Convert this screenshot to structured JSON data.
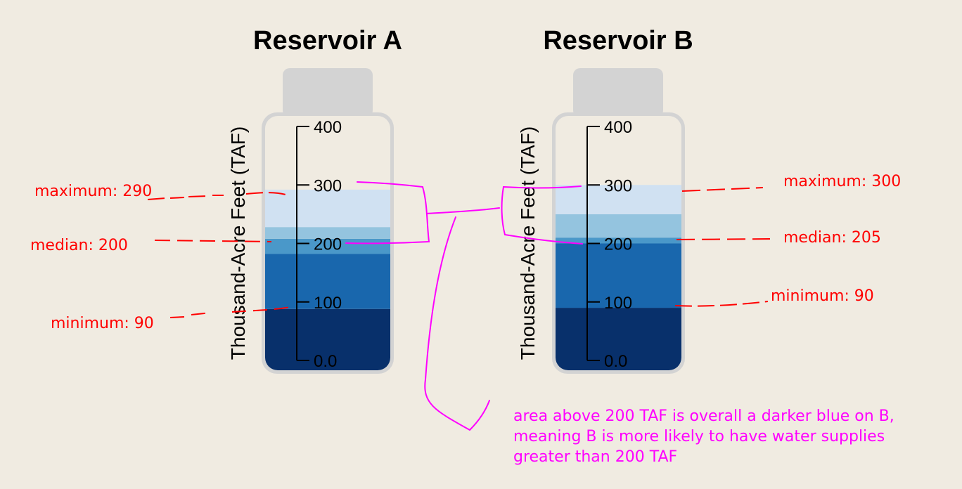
{
  "chart_data": [
    {
      "type": "bar",
      "title": "Reservoir A",
      "ylabel": "Thousand-Acre  Feet (TAF)",
      "ylim": [
        0,
        400
      ],
      "ticks": [
        "0.0",
        "100",
        "200",
        "300",
        "400"
      ],
      "tick_values": [
        0,
        100,
        200,
        300,
        400
      ],
      "bands": [
        {
          "from": 0,
          "to": 88,
          "color": "#08306b"
        },
        {
          "from": 88,
          "to": 182,
          "color": "#1967ad"
        },
        {
          "from": 182,
          "to": 208,
          "color": "#4a98c9"
        },
        {
          "from": 208,
          "to": 228,
          "color": "#94c4df"
        },
        {
          "from": 228,
          "to": 292,
          "color": "#d0e1f2"
        }
      ],
      "annotations": {
        "maximum": "maximum: 290",
        "median": "median: 200",
        "minimum": "minimum: 90"
      },
      "annotation_values": {
        "maximum": 290,
        "median": 200,
        "minimum": 90
      }
    },
    {
      "type": "bar",
      "title": "Reservoir  B",
      "ylabel": "Thousand-Acre  Feet (TAF)",
      "ylim": [
        0,
        400
      ],
      "ticks": [
        "0.0",
        "100",
        "200",
        "300",
        "400"
      ],
      "tick_values": [
        0,
        100,
        200,
        300,
        400
      ],
      "bands": [
        {
          "from": 0,
          "to": 90,
          "color": "#08306b"
        },
        {
          "from": 90,
          "to": 200,
          "color": "#1967ad"
        },
        {
          "from": 200,
          "to": 210,
          "color": "#4a98c9"
        },
        {
          "from": 210,
          "to": 250,
          "color": "#94c4df"
        },
        {
          "from": 250,
          "to": 300,
          "color": "#d0e1f2"
        }
      ],
      "annotations": {
        "maximum": "maximum: 300",
        "median": "median: 205",
        "minimum": "minimum: 90"
      },
      "annotation_values": {
        "maximum": 300,
        "median": 205,
        "minimum": 90
      }
    }
  ],
  "comment": {
    "lines": [
      "area above 200 TAF is overall a darker blue on B,",
      "meaning B is more likely to have water supplies",
      "greater than 200 TAF"
    ]
  },
  "colors": {
    "annotation_red": "#ff0000",
    "annotation_pink": "#ff00ff",
    "bottle": "#d3d3d3",
    "background": "#f0ebe1"
  }
}
